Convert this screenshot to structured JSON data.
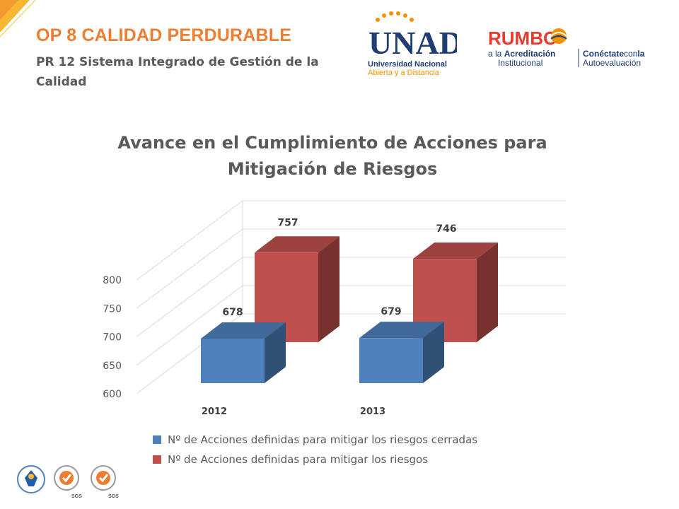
{
  "header": {
    "title": "OP 8 CALIDAD PERDURABLE",
    "subtitle": "PR 12 Sistema Integrado de Gestión de la Calidad"
  },
  "logos": {
    "unad": {
      "mark": "UNAD",
      "line1": "Universidad Nacional",
      "line2": "Abierta y a Distancia"
    },
    "rumbo": {
      "mark": "RUMBO",
      "line1a": "a la ",
      "line1b": "Acreditación",
      "line2": "Institucional",
      "side1a": "Conéctate",
      "side1b": "con",
      "side1c": "la",
      "side2": "Autoevaluación"
    },
    "footer": {
      "cert1": "SGS",
      "cert2": "SGS"
    }
  },
  "colors": {
    "accent": "#ed7d31",
    "series_blue": "#4f81bd",
    "series_red": "#c0504d"
  },
  "chart_data": {
    "type": "bar",
    "title": "Avance en el Cumplimiento de Acciones para Mitigación de Riesgos",
    "categories": [
      "2012",
      "2013"
    ],
    "series": [
      {
        "name": "Nº de Acciones definidas para mitigar los riesgos cerradas",
        "values": [
          678,
          679
        ],
        "color": "#4f81bd"
      },
      {
        "name": "Nº de Acciones definidas para mitigar los riesgos",
        "values": [
          757,
          746
        ],
        "color": "#c0504d"
      }
    ],
    "yticks": [
      "600",
      "650",
      "700",
      "750",
      "800"
    ],
    "ylim": [
      600,
      800
    ],
    "grid": true,
    "legend": "bottom",
    "style": "3d-clustered-column"
  }
}
